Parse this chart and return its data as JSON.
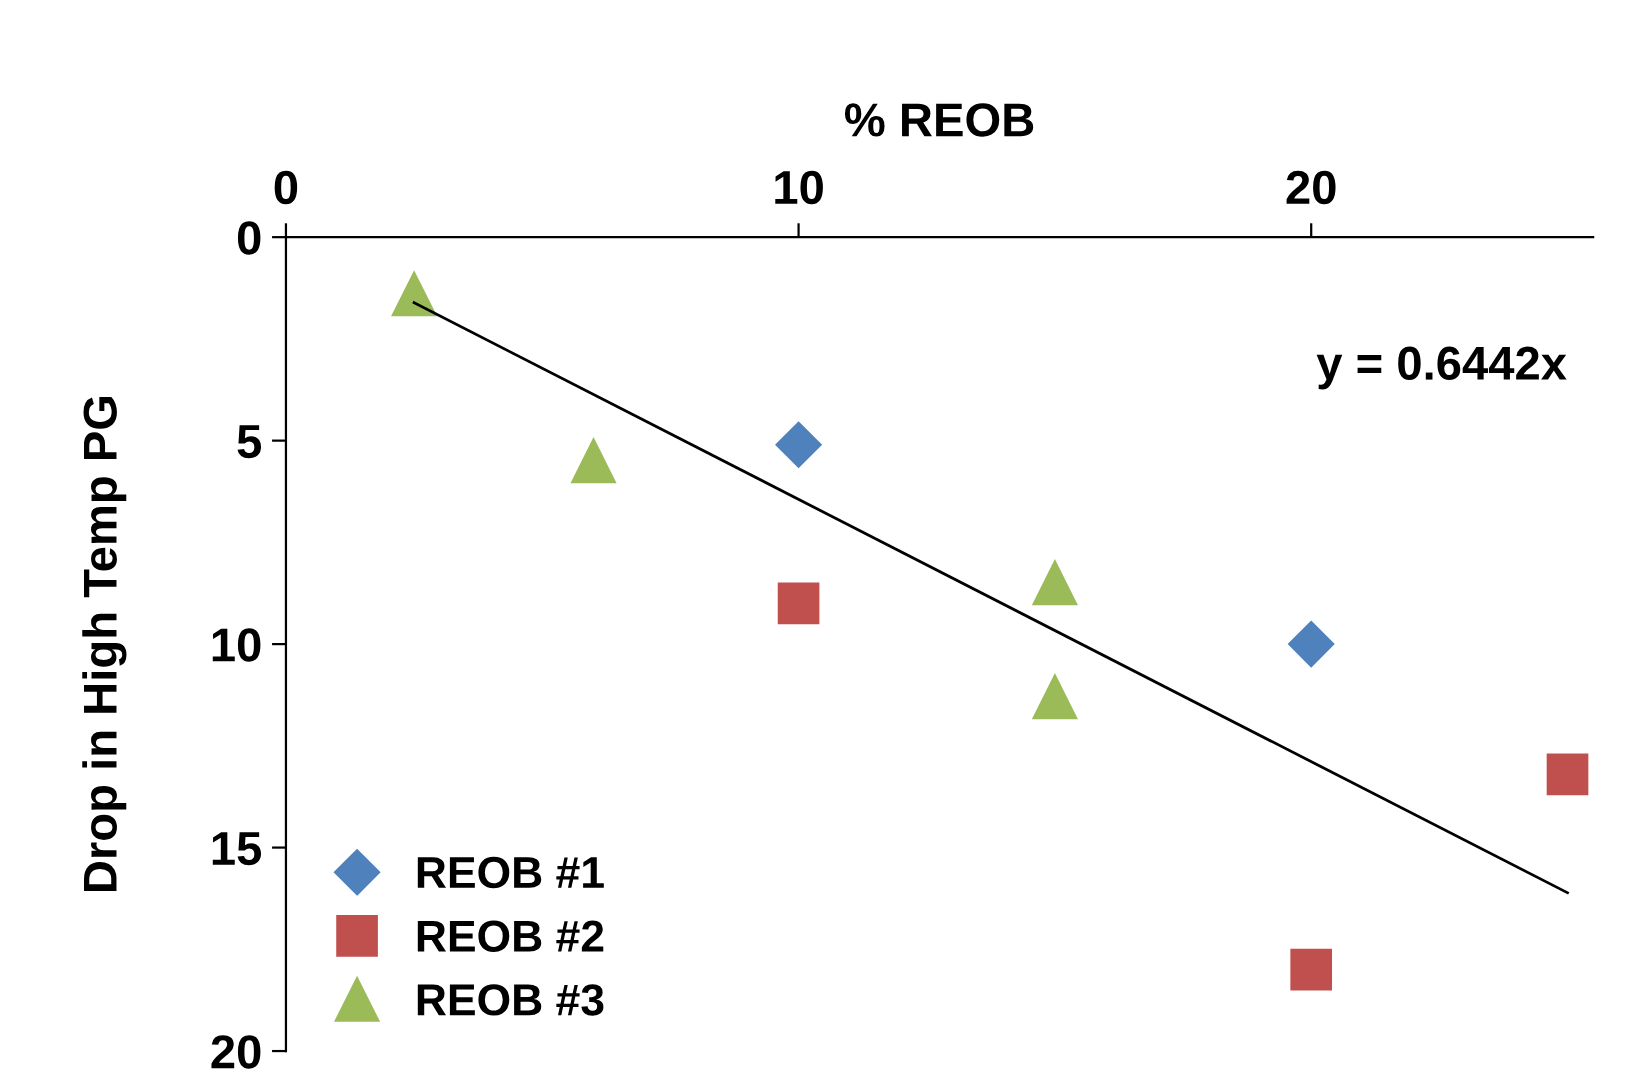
{
  "chart_data": {
    "type": "scatter",
    "xlabel": "% REOB",
    "ylabel": "Drop in High Temp PG",
    "xlim": [
      0,
      25.5
    ],
    "xticks": [
      0,
      10,
      20
    ],
    "ylim": [
      20,
      0
    ],
    "yticks": [
      0,
      5,
      10,
      15,
      20
    ],
    "grid": false,
    "legend": "bottom left",
    "series": [
      {
        "name": "REOB #1",
        "color": "#4f81bd",
        "marker": "diamond",
        "x": [
          10,
          20
        ],
        "values": [
          5.1,
          10
        ]
      },
      {
        "name": "REOB #2",
        "color": "#c0504d",
        "marker": "square",
        "x": [
          10,
          20,
          25
        ],
        "values": [
          9,
          18,
          13.2
        ]
      },
      {
        "name": "REOB #3",
        "color": "#9bbb59",
        "marker": "triangle",
        "x": [
          2.5,
          6,
          15,
          15
        ],
        "values": [
          1.4,
          5.5,
          8.5,
          11.3
        ]
      },
      {
        "type": "line",
        "color": "#000000",
        "marker": "none",
        "x": [
          2.5,
          25
        ],
        "values": [
          1.61,
          16.11
        ]
      }
    ],
    "annotations": [
      "y = 0.6442x"
    ]
  }
}
